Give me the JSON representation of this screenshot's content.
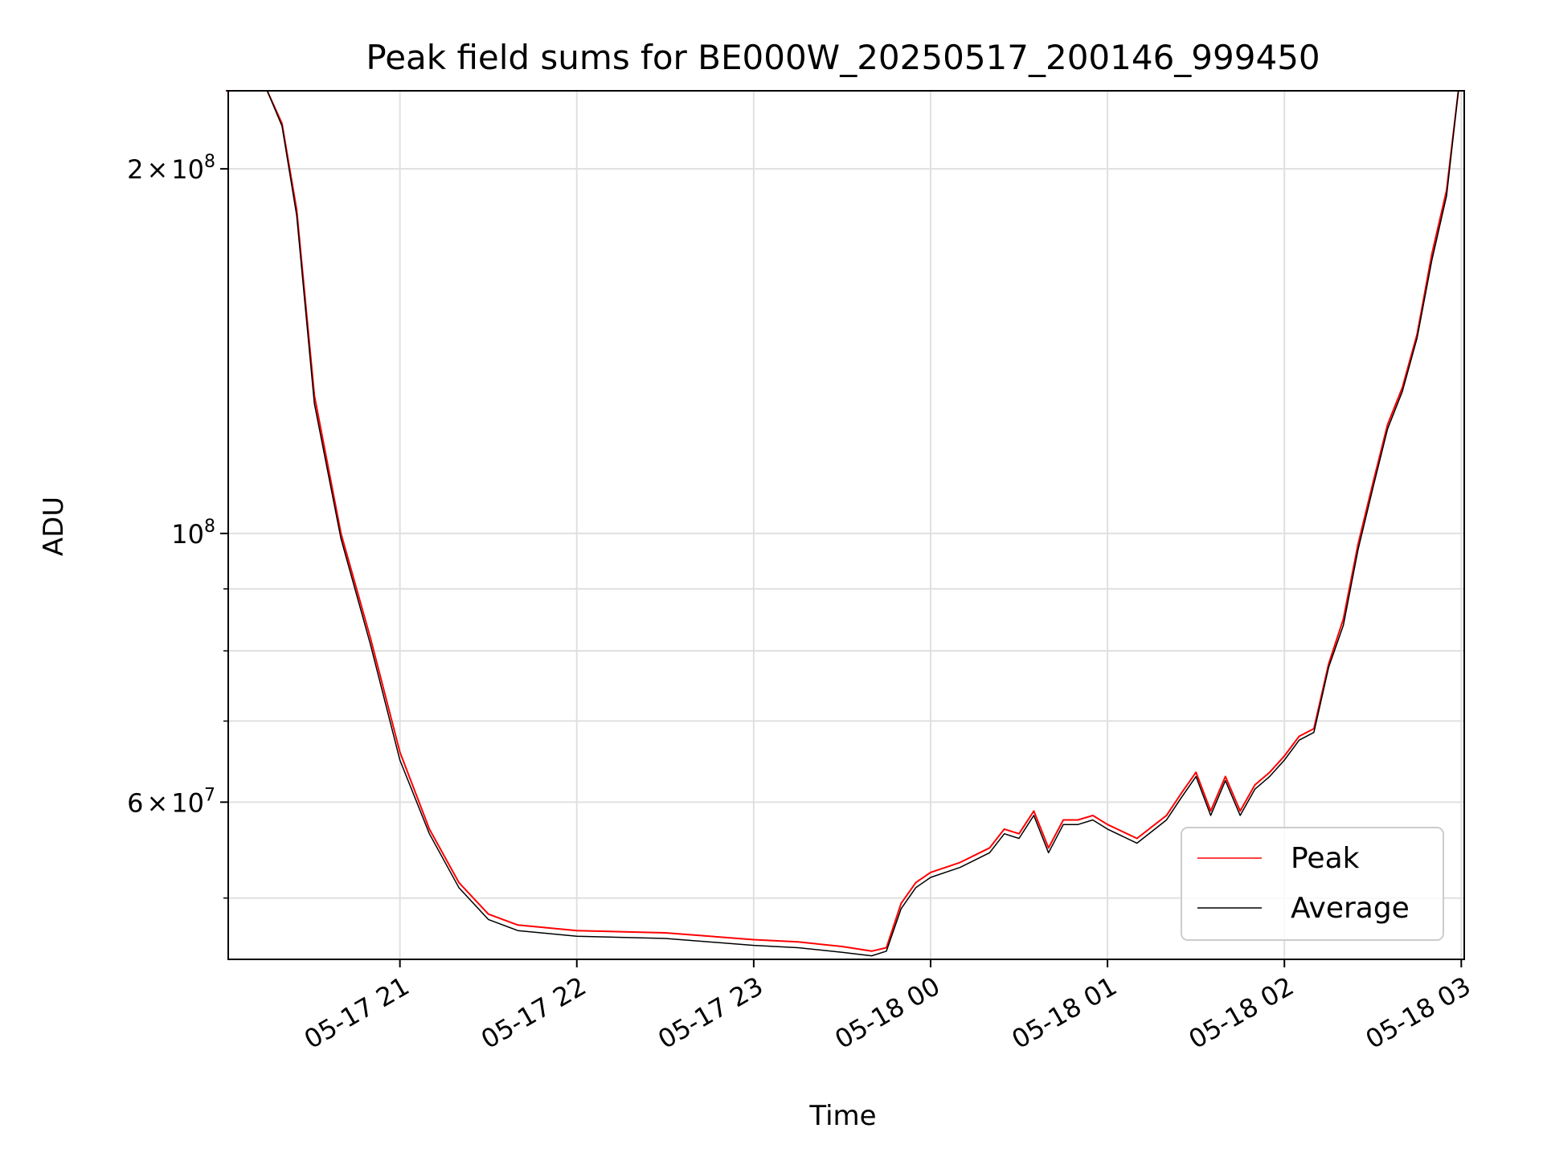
{
  "chart_data": {
    "type": "line",
    "title": "Peak field sums for BE000W_20250517_200146_999450",
    "xlabel": "Time",
    "ylabel": "ADU",
    "y_scale": "log",
    "ylim": [
      44500000,
      232000000
    ],
    "xlim": [
      "2025-05-17 20:01:46",
      "2025-05-18 03:01:00"
    ],
    "grid": true,
    "legend_position": "lower right",
    "x_ticks": [
      "05-17 21",
      "05-17 22",
      "05-17 23",
      "05-18 00",
      "05-18 01",
      "05-18 02",
      "05-18 03"
    ],
    "x_tick_values": [
      "2025-05-17 21:00",
      "2025-05-17 22:00",
      "2025-05-17 23:00",
      "2025-05-18 00:00",
      "2025-05-18 01:00",
      "2025-05-18 02:00",
      "2025-05-18 03:00"
    ],
    "y_ticks_major": [
      {
        "value": 60000000,
        "base": "6",
        "exp": "7"
      },
      {
        "value": 100000000,
        "base": "",
        "exp": "8"
      },
      {
        "value": 200000000,
        "base": "2",
        "exp": "8"
      }
    ],
    "y_ticks_minor": [
      50000000,
      70000000,
      80000000,
      90000000
    ],
    "x": [
      "2025-05-17 20:01",
      "2025-05-17 20:10",
      "2025-05-17 20:15",
      "2025-05-17 20:20",
      "2025-05-17 20:25",
      "2025-05-17 20:31",
      "2025-05-17 20:40",
      "2025-05-17 20:50",
      "2025-05-17 21:00",
      "2025-05-17 21:10",
      "2025-05-17 21:20",
      "2025-05-17 21:30",
      "2025-05-17 21:40",
      "2025-05-17 22:00",
      "2025-05-17 22:30",
      "2025-05-17 23:00",
      "2025-05-17 23:15",
      "2025-05-17 23:30",
      "2025-05-17 23:40",
      "2025-05-17 23:45",
      "2025-05-17 23:50",
      "2025-05-17 23:55",
      "2025-05-18 00:00",
      "2025-05-18 00:10",
      "2025-05-18 00:20",
      "2025-05-18 00:25",
      "2025-05-18 00:30",
      "2025-05-18 00:35",
      "2025-05-18 00:40",
      "2025-05-18 00:45",
      "2025-05-18 00:50",
      "2025-05-18 00:55",
      "2025-05-18 01:00",
      "2025-05-18 01:10",
      "2025-05-18 01:20",
      "2025-05-18 01:25",
      "2025-05-18 01:30",
      "2025-05-18 01:35",
      "2025-05-18 01:40",
      "2025-05-18 01:45",
      "2025-05-18 01:50",
      "2025-05-18 01:55",
      "2025-05-18 02:00",
      "2025-05-18 02:05",
      "2025-05-18 02:10",
      "2025-05-18 02:15",
      "2025-05-18 02:20",
      "2025-05-18 02:25",
      "2025-05-18 02:30",
      "2025-05-18 02:35",
      "2025-05-18 02:40",
      "2025-05-18 02:45",
      "2025-05-18 02:50",
      "2025-05-18 02:55",
      "2025-05-18 02:59"
    ],
    "series": [
      {
        "name": "Peak",
        "color": "#ff0000",
        "values": [
          232000000,
          232000000,
          232000000,
          218000000,
          185000000,
          130000000,
          100000000,
          82000000,
          66000000,
          57000000,
          51500000,
          48500000,
          47500000,
          47000000,
          46800000,
          46200000,
          46000000,
          45600000,
          45200000,
          45500000,
          49500000,
          51500000,
          52500000,
          53500000,
          55000000,
          57000000,
          56500000,
          59000000,
          55000000,
          58000000,
          58000000,
          58500000,
          57500000,
          56000000,
          58500000,
          61000000,
          63500000,
          59000000,
          63000000,
          59000000,
          62000000,
          63500000,
          65500000,
          68000000,
          69000000,
          78000000,
          85000000,
          98000000,
          110000000,
          123000000,
          132000000,
          146000000,
          170000000,
          192000000,
          232000000
        ]
      },
      {
        "name": "Average",
        "color": "#000000",
        "values": [
          232000000,
          232000000,
          232000000,
          217000000,
          183000000,
          128000000,
          99000000,
          81000000,
          65000000,
          56500000,
          51000000,
          48000000,
          47000000,
          46500000,
          46300000,
          45700000,
          45500000,
          45100000,
          44800000,
          45200000,
          49000000,
          51000000,
          52000000,
          53000000,
          54500000,
          56500000,
          56000000,
          58500000,
          54500000,
          57500000,
          57500000,
          58000000,
          57000000,
          55500000,
          58000000,
          60500000,
          63000000,
          58500000,
          62500000,
          58500000,
          61500000,
          63000000,
          65000000,
          67500000,
          68500000,
          77500000,
          84000000,
          97000000,
          109000000,
          122000000,
          131000000,
          145000000,
          168000000,
          190000000,
          232000000
        ]
      }
    ]
  }
}
